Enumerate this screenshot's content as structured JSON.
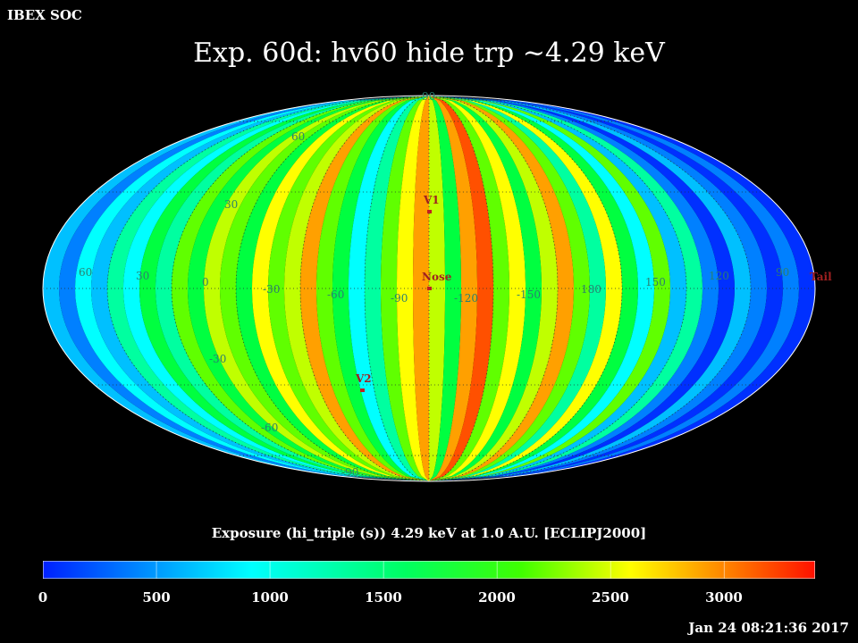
{
  "header": {
    "corner_label": "IBEX SOC",
    "title": "Exp.   60d: hv60 hide trp ~4.29 keV"
  },
  "map": {
    "projection": "aitoff-like all-sky",
    "frame": "ECLIPJ2000",
    "longitude_labels": [
      "60",
      "30",
      "0",
      "-30",
      "-60",
      "-90",
      "-120",
      "-150",
      "180",
      "150",
      "120",
      "90"
    ],
    "latitude_labels": [
      "90",
      "60",
      "30",
      "-30",
      "-60",
      "-90"
    ],
    "markers": [
      {
        "name": "V1",
        "lon": -105,
        "lat": 35
      },
      {
        "name": "Nose",
        "lon": -105,
        "lat": 5
      },
      {
        "name": "V2",
        "lon": -75,
        "lat": -35
      },
      {
        "name": "Tail",
        "lon": 75,
        "lat": 0
      }
    ],
    "colors": {
      "low": "#0000ff",
      "mid_low": "#00ffff",
      "mid": "#00ff40",
      "mid_high": "#ffff00",
      "high": "#ff2000"
    }
  },
  "colorbar": {
    "title": "Exposure (hi_triple (s))  4.29 keV at 1.0 A.U. [ECLIPJ2000]",
    "ticks": [
      "0",
      "500",
      "1000",
      "1500",
      "2000",
      "2500",
      "3000"
    ],
    "min": 0,
    "max": 3400
  },
  "footer": {
    "timestamp": "Jan 24 08:21:36 2017"
  }
}
